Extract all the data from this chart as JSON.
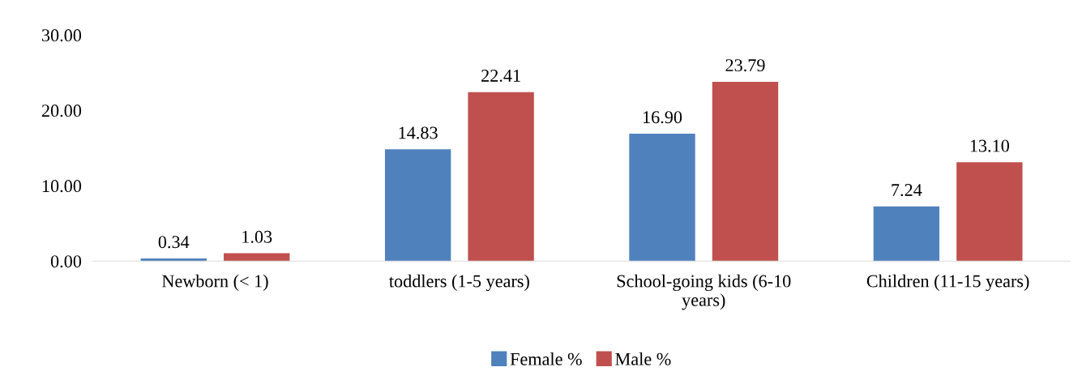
{
  "chart_data": {
    "type": "bar",
    "categories": [
      "Newborn (< 1)",
      "toddlers (1-5 years)",
      "School-going kids (6-10\nyears)",
      "Children (11-15 years)"
    ],
    "series": [
      {
        "name": "Female %",
        "color": "#4f81bd",
        "values": [
          0.34,
          14.83,
          16.9,
          7.24
        ],
        "value_labels": [
          "0.34",
          "14.83",
          "16.90",
          "7.24"
        ]
      },
      {
        "name": "Male %",
        "color": "#c0504d",
        "values": [
          1.03,
          22.41,
          23.79,
          13.1
        ],
        "value_labels": [
          "1.03",
          "22.41",
          "23.79",
          "13.10"
        ]
      }
    ],
    "ylim": [
      0,
      30
    ],
    "yticks": [
      {
        "value": 0,
        "label": "0.00"
      },
      {
        "value": 10,
        "label": "10.00"
      },
      {
        "value": 20,
        "label": "20.00"
      },
      {
        "value": 30,
        "label": "30.00"
      }
    ],
    "grid": false,
    "legend": "bottom"
  }
}
